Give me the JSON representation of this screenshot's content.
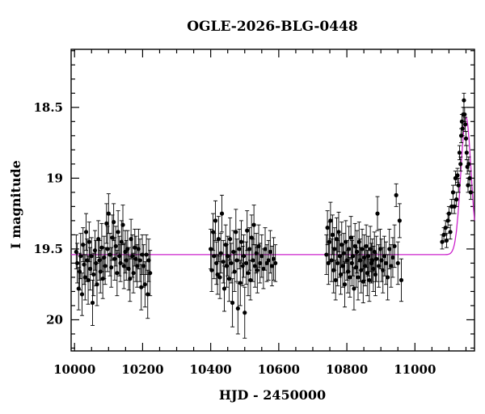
{
  "chart_data": {
    "type": "scatter",
    "title": "OGLE-2026-BLG-0448",
    "xlabel": "HJD - 2450000",
    "ylabel": "I magnitude",
    "xlim": [
      9990,
      11175
    ],
    "ylim": [
      20.22,
      18.09
    ],
    "y_inverted": true,
    "x_ticks": [
      10000,
      10200,
      10400,
      10600,
      10800,
      11000
    ],
    "y_ticks": [
      18.5,
      19,
      19.5,
      20
    ],
    "y_tick_labels": [
      "18.5",
      "19",
      "19.5",
      "20"
    ],
    "grid": false,
    "legend": "none",
    "colors": {
      "points": "#000000",
      "model": "#cc22cc"
    },
    "model": {
      "name": "",
      "baseline": 19.54,
      "peak_time": 11150,
      "peak_mag": 18.57,
      "width_days": 45
    },
    "series": [
      {
        "points": [
          [
            10005,
            19.52,
            0.12
          ],
          [
            10008,
            19.6,
            0.14
          ],
          [
            10012,
            19.78,
            0.15
          ],
          [
            10015,
            19.66,
            0.13
          ],
          [
            10018,
            19.55,
            0.16
          ],
          [
            10022,
            19.82,
            0.15
          ],
          [
            10025,
            19.47,
            0.12
          ],
          [
            10028,
            19.61,
            0.14
          ],
          [
            10031,
            19.7,
            0.16
          ],
          [
            10034,
            19.38,
            0.13
          ],
          [
            10037,
            19.58,
            0.15
          ],
          [
            10040,
            19.72,
            0.17
          ],
          [
            10043,
            19.45,
            0.14
          ],
          [
            10046,
            19.64,
            0.15
          ],
          [
            10050,
            19.55,
            0.13
          ],
          [
            10053,
            19.88,
            0.16
          ],
          [
            10056,
            19.68,
            0.15
          ],
          [
            10060,
            19.51,
            0.14
          ],
          [
            10063,
            19.6,
            0.16
          ],
          [
            10066,
            19.75,
            0.15
          ],
          [
            10070,
            19.43,
            0.13
          ],
          [
            10073,
            19.58,
            0.14
          ],
          [
            10076,
            19.66,
            0.15
          ],
          [
            10080,
            19.49,
            0.17
          ],
          [
            10083,
            19.71,
            0.14
          ],
          [
            10087,
            19.56,
            0.15
          ],
          [
            10090,
            19.62,
            0.13
          ],
          [
            10094,
            19.32,
            0.14
          ],
          [
            10097,
            19.5,
            0.16
          ],
          [
            10100,
            19.25,
            0.14
          ],
          [
            10104,
            19.54,
            0.15
          ],
          [
            10108,
            19.63,
            0.14
          ],
          [
            10111,
            19.42,
            0.16
          ],
          [
            10115,
            19.31,
            0.13
          ],
          [
            10118,
            19.57,
            0.15
          ],
          [
            10121,
            19.48,
            0.14
          ],
          [
            10125,
            19.67,
            0.16
          ],
          [
            10128,
            19.38,
            0.15
          ],
          [
            10132,
            19.55,
            0.14
          ],
          [
            10135,
            19.6,
            0.13
          ],
          [
            10138,
            19.45,
            0.15
          ],
          [
            10142,
            19.33,
            0.14
          ],
          [
            10145,
            19.62,
            0.16
          ],
          [
            10149,
            19.52,
            0.15
          ],
          [
            10152,
            19.58,
            0.14
          ],
          [
            10156,
            19.5,
            0.13
          ],
          [
            10159,
            19.64,
            0.15
          ],
          [
            10163,
            19.71,
            0.16
          ],
          [
            10166,
            19.43,
            0.14
          ],
          [
            10170,
            19.55,
            0.15
          ],
          [
            10173,
            19.67,
            0.14
          ],
          [
            10177,
            19.49,
            0.13
          ],
          [
            10180,
            19.57,
            0.16
          ],
          [
            10184,
            19.62,
            0.15
          ],
          [
            10188,
            19.5,
            0.14
          ],
          [
            10192,
            19.58,
            0.15
          ],
          [
            10196,
            19.77,
            0.16
          ],
          [
            10199,
            19.54,
            0.14
          ],
          [
            10203,
            19.62,
            0.15
          ],
          [
            10207,
            19.75,
            0.16
          ],
          [
            10211,
            19.54,
            0.14
          ],
          [
            10215,
            19.82,
            0.17
          ],
          [
            10218,
            19.58,
            0.15
          ],
          [
            10222,
            19.67,
            0.16
          ],
          [
            10400,
            19.5,
            0.14
          ],
          [
            10403,
            19.65,
            0.15
          ],
          [
            10407,
            19.38,
            0.13
          ],
          [
            10410,
            19.55,
            0.16
          ],
          [
            10414,
            19.3,
            0.14
          ],
          [
            10417,
            19.6,
            0.15
          ],
          [
            10420,
            19.68,
            0.14
          ],
          [
            10423,
            19.43,
            0.16
          ],
          [
            10427,
            19.7,
            0.15
          ],
          [
            10430,
            19.53,
            0.14
          ],
          [
            10433,
            19.25,
            0.13
          ],
          [
            10437,
            19.59,
            0.15
          ],
          [
            10440,
            19.78,
            0.16
          ],
          [
            10444,
            19.47,
            0.14
          ],
          [
            10447,
            19.62,
            0.15
          ],
          [
            10450,
            19.55,
            0.14
          ],
          [
            10454,
            19.71,
            0.16
          ],
          [
            10457,
            19.43,
            0.15
          ],
          [
            10460,
            19.6,
            0.14
          ],
          [
            10464,
            19.88,
            0.17
          ],
          [
            10467,
            19.52,
            0.15
          ],
          [
            10470,
            19.66,
            0.14
          ],
          [
            10474,
            19.38,
            0.16
          ],
          [
            10477,
            19.58,
            0.15
          ],
          [
            10480,
            19.92,
            0.18
          ],
          [
            10484,
            19.5,
            0.14
          ],
          [
            10487,
            19.74,
            0.16
          ],
          [
            10490,
            19.45,
            0.15
          ],
          [
            10494,
            19.62,
            0.14
          ],
          [
            10497,
            19.55,
            0.15
          ],
          [
            10500,
            19.95,
            0.18
          ],
          [
            10504,
            19.6,
            0.15
          ],
          [
            10507,
            19.37,
            0.14
          ],
          [
            10510,
            19.67,
            0.16
          ],
          [
            10514,
            19.5,
            0.15
          ],
          [
            10517,
            19.72,
            0.14
          ],
          [
            10520,
            19.42,
            0.16
          ],
          [
            10524,
            19.58,
            0.15
          ],
          [
            10527,
            19.33,
            0.14
          ],
          [
            10530,
            19.62,
            0.15
          ],
          [
            10534,
            19.53,
            0.14
          ],
          [
            10537,
            19.65,
            0.16
          ],
          [
            10541,
            19.48,
            0.15
          ],
          [
            10545,
            19.6,
            0.14
          ],
          [
            10550,
            19.55,
            0.15
          ],
          [
            10555,
            19.64,
            0.14
          ],
          [
            10560,
            19.5,
            0.15
          ],
          [
            10565,
            19.6,
            0.13
          ],
          [
            10570,
            19.58,
            0.14
          ],
          [
            10575,
            19.52,
            0.15
          ],
          [
            10580,
            19.62,
            0.14
          ],
          [
            10585,
            19.57,
            0.15
          ],
          [
            10590,
            19.6,
            0.13
          ],
          [
            10740,
            19.54,
            0.14
          ],
          [
            10743,
            19.35,
            0.12
          ],
          [
            10746,
            19.6,
            0.15
          ],
          [
            10749,
            19.45,
            0.14
          ],
          [
            10752,
            19.3,
            0.13
          ],
          [
            10755,
            19.58,
            0.15
          ],
          [
            10758,
            19.4,
            0.14
          ],
          [
            10761,
            19.65,
            0.16
          ],
          [
            10764,
            19.5,
            0.15
          ],
          [
            10767,
            19.72,
            0.14
          ],
          [
            10770,
            19.43,
            0.15
          ],
          [
            10773,
            19.6,
            0.16
          ],
          [
            10776,
            19.38,
            0.14
          ],
          [
            10779,
            19.55,
            0.15
          ],
          [
            10782,
            19.68,
            0.14
          ],
          [
            10785,
            19.47,
            0.16
          ],
          [
            10788,
            19.62,
            0.15
          ],
          [
            10791,
            19.53,
            0.14
          ],
          [
            10794,
            19.75,
            0.16
          ],
          [
            10797,
            19.45,
            0.15
          ],
          [
            10800,
            19.58,
            0.14
          ],
          [
            10803,
            19.66,
            0.15
          ],
          [
            10806,
            19.5,
            0.16
          ],
          [
            10809,
            19.7,
            0.14
          ],
          [
            10812,
            19.42,
            0.15
          ],
          [
            10815,
            19.6,
            0.16
          ],
          [
            10818,
            19.55,
            0.14
          ],
          [
            10821,
            19.78,
            0.15
          ],
          [
            10824,
            19.48,
            0.16
          ],
          [
            10827,
            19.63,
            0.14
          ],
          [
            10830,
            19.52,
            0.15
          ],
          [
            10833,
            19.7,
            0.16
          ],
          [
            10836,
            19.45,
            0.14
          ],
          [
            10839,
            19.58,
            0.15
          ],
          [
            10842,
            19.65,
            0.16
          ],
          [
            10845,
            19.5,
            0.14
          ],
          [
            10848,
            19.73,
            0.15
          ],
          [
            10851,
            19.56,
            0.16
          ],
          [
            10854,
            19.62,
            0.14
          ],
          [
            10857,
            19.48,
            0.15
          ],
          [
            10860,
            19.67,
            0.16
          ],
          [
            10863,
            19.55,
            0.14
          ],
          [
            10866,
            19.72,
            0.15
          ],
          [
            10869,
            19.5,
            0.16
          ],
          [
            10872,
            19.6,
            0.14
          ],
          [
            10875,
            19.58,
            0.15
          ],
          [
            10878,
            19.64,
            0.16
          ],
          [
            10881,
            19.52,
            0.14
          ],
          [
            10884,
            19.68,
            0.15
          ],
          [
            10887,
            19.57,
            0.16
          ],
          [
            10890,
            19.25,
            0.12
          ],
          [
            10894,
            19.62,
            0.15
          ],
          [
            10898,
            19.5,
            0.14
          ],
          [
            10902,
            19.58,
            0.15
          ],
          [
            10906,
            19.65,
            0.16
          ],
          [
            10910,
            19.55,
            0.14
          ],
          [
            10915,
            19.6,
            0.15
          ],
          [
            10920,
            19.7,
            0.16
          ],
          [
            10925,
            19.5,
            0.14
          ],
          [
            10930,
            19.62,
            0.15
          ],
          [
            10935,
            19.56,
            0.14
          ],
          [
            10940,
            19.48,
            0.15
          ],
          [
            10945,
            19.12,
            0.08
          ],
          [
            10950,
            19.6,
            0.15
          ],
          [
            10955,
            19.3,
            0.12
          ],
          [
            10960,
            19.72,
            0.15
          ],
          [
            11080,
            19.45,
            0.05
          ],
          [
            11085,
            19.4,
            0.05
          ],
          [
            11090,
            19.35,
            0.05
          ],
          [
            11093,
            19.44,
            0.05
          ],
          [
            11097,
            19.3,
            0.05
          ],
          [
            11100,
            19.25,
            0.05
          ],
          [
            11104,
            19.38,
            0.05
          ],
          [
            11108,
            19.2,
            0.05
          ],
          [
            11112,
            19.1,
            0.05
          ],
          [
            11116,
            19.2,
            0.05
          ],
          [
            11119,
            19.0,
            0.05
          ],
          [
            11122,
            19.15,
            0.05
          ],
          [
            11125,
            18.98,
            0.05
          ],
          [
            11128,
            19.05,
            0.05
          ],
          [
            11131,
            18.82,
            0.05
          ],
          [
            11134,
            18.9,
            0.05
          ],
          [
            11136,
            18.7,
            0.05
          ],
          [
            11138,
            18.6,
            0.05
          ],
          [
            11140,
            18.65,
            0.05
          ],
          [
            11142,
            18.55,
            0.05
          ],
          [
            11144,
            18.45,
            0.05
          ],
          [
            11146,
            18.55,
            0.05
          ],
          [
            11148,
            18.62,
            0.05
          ],
          [
            11150,
            18.72,
            0.05
          ],
          [
            11152,
            18.82,
            0.05
          ],
          [
            11154,
            18.92,
            0.05
          ],
          [
            11156,
            19.05,
            0.05
          ],
          [
            11158,
            18.9,
            0.05
          ],
          [
            11161,
            19.0,
            0.05
          ],
          [
            11164,
            19.1,
            0.05
          ]
        ]
      }
    ]
  }
}
